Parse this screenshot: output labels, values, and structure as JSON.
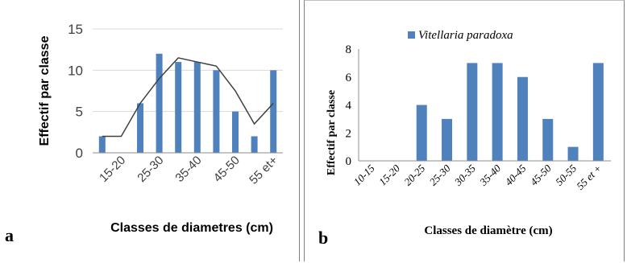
{
  "chart_data": [
    {
      "type": "bar",
      "panel_label": "a",
      "categories": [
        "10-15",
        "15-20",
        "20-25",
        "25-30",
        "30-35",
        "35-40",
        "40-45",
        "45-50",
        "50-55",
        "55 et+"
      ],
      "shown_tick_labels": [
        "15-20",
        "25-30",
        "35-40",
        "45-50",
        "55 et+"
      ],
      "values": [
        2,
        0,
        6,
        12,
        11,
        11,
        10,
        5,
        2,
        10
      ],
      "trend_line": [
        2,
        2,
        6,
        9,
        11.5,
        11,
        10.5,
        7.5,
        3.5,
        6
      ],
      "xlabel": "Classes de diametres (cm)",
      "ylabel": "Effectif par classe",
      "ylim": [
        0,
        15
      ],
      "yticks": [
        0,
        5,
        10,
        15
      ],
      "grid": true,
      "bar_color": "#4f81bd",
      "line_color": "#404040"
    },
    {
      "type": "bar",
      "panel_label": "b",
      "categories": [
        "10-15",
        "15-20",
        "20-25",
        "25-30",
        "30-35",
        "35-40",
        "40-45",
        "45-50",
        "50-55",
        "55 et +"
      ],
      "series": [
        {
          "name": "Vitellaria paradoxa",
          "values": [
            0,
            0,
            4,
            3,
            7,
            7,
            6,
            3,
            1,
            7
          ]
        }
      ],
      "xlabel": "Classes de diamètre (cm)",
      "ylabel": "Effectif par classe",
      "ylim": [
        0,
        8
      ],
      "yticks": [
        0,
        2,
        4,
        6,
        8
      ],
      "grid": false,
      "legend": "top",
      "bar_color": "#4f81bd"
    }
  ]
}
